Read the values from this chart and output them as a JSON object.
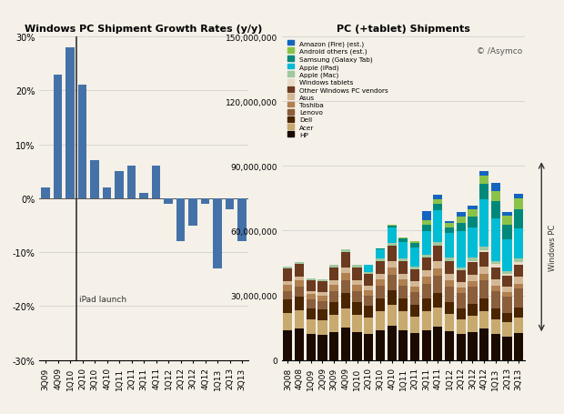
{
  "left_title": "Windows PC Shipment Growth Rates (y/y)",
  "right_title": "PC (+tablet) Shipments",
  "left_categories": [
    "3Q09",
    "4Q09",
    "1Q10",
    "2Q10",
    "3Q10",
    "4Q10",
    "1Q11",
    "2Q11",
    "3Q11",
    "4Q11",
    "1Q12",
    "2Q12",
    "3Q12",
    "4Q12",
    "1Q13",
    "2Q13",
    "3Q13"
  ],
  "left_values": [
    2,
    23,
    28,
    21,
    7,
    2,
    5,
    6,
    1,
    6,
    -1,
    -8,
    -5,
    -1,
    -13,
    -2,
    -8
  ],
  "left_bar_color": "#4472a8",
  "left_ylim": [
    -30,
    30
  ],
  "left_yticks": [
    -30,
    -20,
    -10,
    0,
    10,
    20,
    30
  ],
  "left_ytick_labels": [
    "-30%",
    "-20%",
    "-10%",
    "0%",
    "10%",
    "20%",
    "30%"
  ],
  "ipad_launch_bar": 3,
  "right_categories": [
    "3Q08",
    "4Q08",
    "1Q09",
    "2Q09",
    "3Q09",
    "4Q09",
    "1Q10",
    "2Q10",
    "3Q10",
    "4Q10",
    "1Q11",
    "2Q11",
    "3Q11",
    "4Q11",
    "1Q12",
    "2Q12",
    "3Q12",
    "4Q12",
    "1Q13",
    "2Q13",
    "3Q13"
  ],
  "right_ylim": [
    0,
    150000000
  ],
  "right_yticks": [
    0,
    30000000,
    60000000,
    90000000,
    120000000,
    150000000
  ],
  "right_ytick_labels": [
    "0",
    "30,000,000",
    "60,000,000",
    "90,000,000",
    "120,000,000",
    "150,000,000"
  ],
  "stack_data": {
    "HP": [
      14000000,
      14500000,
      12000000,
      11500000,
      13000000,
      15000000,
      13000000,
      12000000,
      14000000,
      16000000,
      14000000,
      12500000,
      14000000,
      15500000,
      13500000,
      12000000,
      13000000,
      14500000,
      12000000,
      11000000,
      12500000
    ],
    "Acer": [
      8000000,
      8500000,
      7000000,
      7000000,
      8000000,
      9000000,
      8000000,
      7500000,
      8500000,
      9500000,
      8500000,
      7500000,
      8500000,
      9000000,
      8000000,
      7000000,
      7500000,
      8000000,
      7000000,
      6500000,
      7000000
    ],
    "Dell": [
      6000000,
      6500000,
      5000000,
      5000000,
      6000000,
      7000000,
      6000000,
      5500000,
      6000000,
      7000000,
      6000000,
      5500000,
      6000000,
      6500000,
      5500000,
      5000000,
      5500000,
      6000000,
      5000000,
      4500000,
      5000000
    ],
    "Lenovo": [
      4000000,
      4500000,
      4000000,
      4000000,
      5000000,
      6000000,
      5000000,
      5000000,
      6000000,
      7000000,
      6000000,
      6000000,
      7000000,
      8000000,
      7000000,
      7000000,
      8000000,
      8500000,
      8000000,
      7500000,
      8500000
    ],
    "Toshiba": [
      3000000,
      3000000,
      2500000,
      2500000,
      3000000,
      3500000,
      3000000,
      2500000,
      3000000,
      3500000,
      3000000,
      2500000,
      3000000,
      3500000,
      3000000,
      2500000,
      2500000,
      3000000,
      2500000,
      2000000,
      2500000
    ],
    "Asus": [
      1500000,
      1500000,
      1500000,
      1500000,
      2000000,
      2500000,
      2000000,
      2000000,
      2500000,
      3000000,
      2500000,
      2500000,
      3000000,
      3500000,
      3000000,
      2500000,
      3000000,
      3500000,
      3000000,
      2500000,
      3000000
    ],
    "Other Windows PC vendors": [
      6000000,
      6000000,
      5000000,
      5000000,
      6000000,
      7000000,
      6000000,
      5500000,
      6000000,
      7000000,
      6000000,
      5500000,
      6000000,
      7000000,
      6000000,
      5500000,
      6000000,
      6500000,
      5500000,
      5000000,
      5500000
    ],
    "Windows tablets": [
      0,
      0,
      0,
      0,
      0,
      0,
      0,
      0,
      0,
      0,
      0,
      0,
      0,
      0,
      0,
      0,
      500000,
      1000000,
      1500000,
      1000000,
      1500000
    ],
    "Apple (Mac)": [
      1000000,
      1000000,
      800000,
      800000,
      1000000,
      1200000,
      1000000,
      1000000,
      1200000,
      1400000,
      1200000,
      1200000,
      1400000,
      1500000,
      1400000,
      1200000,
      1500000,
      1700000,
      1500000,
      1300000,
      1500000
    ],
    "Apple (iPad)": [
      0,
      0,
      0,
      0,
      0,
      0,
      0,
      3000000,
      4000000,
      7000000,
      7500000,
      9000000,
      11000000,
      15000000,
      11500000,
      17000000,
      14000000,
      22000000,
      19500000,
      14500000,
      14000000
    ],
    "Samsung (Galaxy Tab)": [
      0,
      0,
      0,
      0,
      0,
      0,
      0,
      0,
      500000,
      1000000,
      1500000,
      2000000,
      3000000,
      3000000,
      2500000,
      4000000,
      5000000,
      7000000,
      8000000,
      7000000,
      9000000
    ],
    "Android others (est.)": [
      0,
      0,
      0,
      0,
      0,
      0,
      0,
      0,
      0,
      500000,
      500000,
      1000000,
      2000000,
      2000000,
      2000000,
      3000000,
      3500000,
      4000000,
      5000000,
      4000000,
      5000000
    ],
    "Amazon (Fire) (est.)": [
      0,
      0,
      0,
      0,
      0,
      0,
      0,
      0,
      0,
      0,
      0,
      0,
      4000000,
      2000000,
      1000000,
      2000000,
      1500000,
      2000000,
      3500000,
      2000000,
      2000000
    ]
  },
  "stack_colors": {
    "HP": "#1a0a00",
    "Acer": "#c8a96e",
    "Dell": "#4a2500",
    "Lenovo": "#8b5e3c",
    "Toshiba": "#b08050",
    "Asus": "#d4b896",
    "Other Windows PC vendors": "#6b3a1f",
    "Windows tablets": "#e8dcc8",
    "Apple (Mac)": "#a0c8a0",
    "Apple (iPad)": "#00bcd4",
    "Samsung (Galaxy Tab)": "#00897b",
    "Android others (est.)": "#8bc34a",
    "Amazon (Fire) (est.)": "#1565c0"
  },
  "stack_order": [
    "HP",
    "Acer",
    "Dell",
    "Lenovo",
    "Toshiba",
    "Asus",
    "Other Windows PC vendors",
    "Windows tablets",
    "Apple (Mac)",
    "Apple (iPad)",
    "Samsung (Galaxy Tab)",
    "Android others (est.)",
    "Amazon (Fire) (est.)"
  ],
  "legend_order": [
    "Amazon (Fire) (est.)",
    "Android others (est.)",
    "Samsung (Galaxy Tab)",
    "Apple (iPad)",
    "Apple (Mac)",
    "Windows tablets",
    "Other Windows PC vendors",
    "Asus",
    "Toshiba",
    "Lenovo",
    "Dell",
    "Acer",
    "HP"
  ],
  "background_color": "#f5f0e8",
  "watermark": "© /Asymco"
}
